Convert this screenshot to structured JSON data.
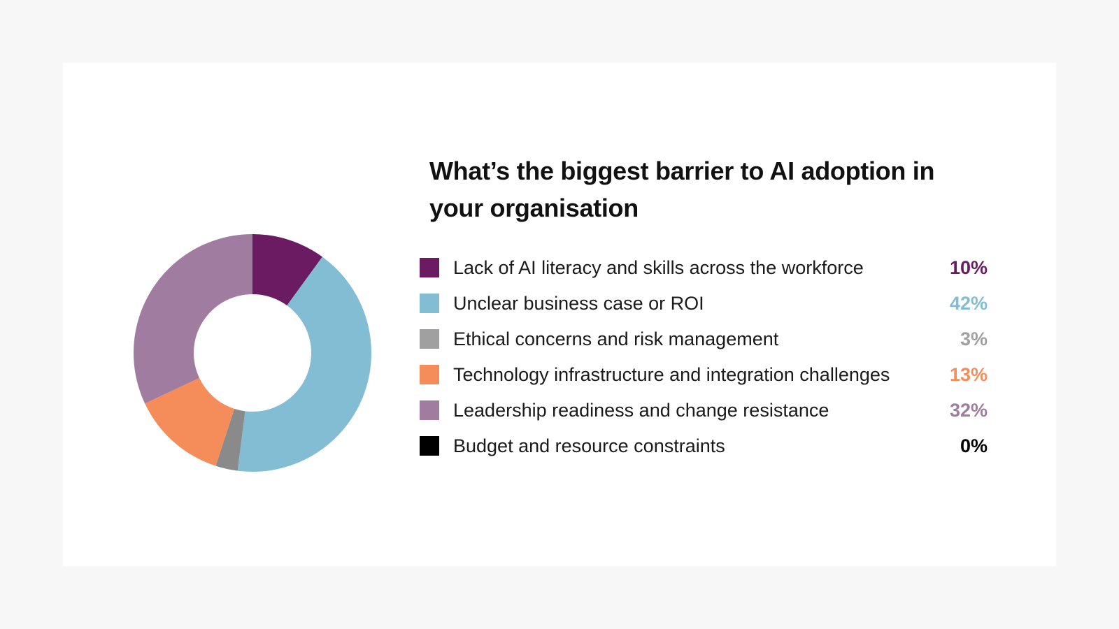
{
  "chart_data": {
    "type": "pie",
    "title": "What’s the biggest barrier to AI adoption in your organisation",
    "legend": "right",
    "slices": [
      {
        "label": "Lack of AI literacy and skills across the workforce",
        "value": 10,
        "value_label": "10%",
        "color": "#6a1b62"
      },
      {
        "label": "Unclear business case or ROI",
        "value": 42,
        "value_label": "42%",
        "color": "#82bdd3"
      },
      {
        "label": "Ethical concerns and risk management",
        "value": 3,
        "value_label": "3%",
        "color": "#8a8a8a"
      },
      {
        "label": "Technology infrastructure and integration challenges",
        "value": 13,
        "value_label": "13%",
        "color": "#f58d5b"
      },
      {
        "label": "Leadership readiness and change resistance",
        "value": 32,
        "value_label": "32%",
        "color": "#a07ca0"
      },
      {
        "label": "Budget and resource constraints",
        "value": 0,
        "value_label": "0%",
        "color": "#000000"
      }
    ],
    "value_colors": [
      "#6a1b62",
      "#82bdd3",
      "#a0a0a0",
      "#f58d5b",
      "#a07ca0",
      "#000000"
    ],
    "legend_swatch_colors": [
      "#6a1b62",
      "#82bdd3",
      "#a0a0a0",
      "#f58d5b",
      "#a07ca0",
      "#000000"
    ],
    "donut": true
  }
}
